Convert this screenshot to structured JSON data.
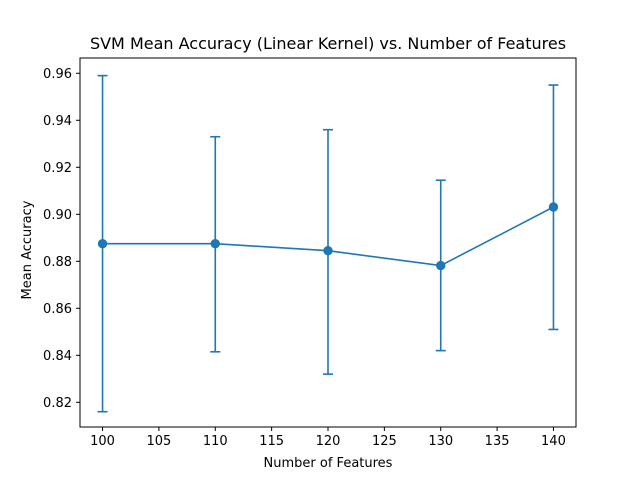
{
  "chart_data": {
    "type": "line",
    "title": "SVM Mean Accuracy (Linear Kernel) vs. Number of Features",
    "xlabel": "Number of Features",
    "ylabel": "Mean Accuracy",
    "xlim": [
      98,
      142
    ],
    "ylim": [
      0.8095,
      0.9665
    ],
    "xticks": [
      100,
      105,
      110,
      115,
      120,
      125,
      130,
      135,
      140
    ],
    "xtick_labels": [
      "100",
      "105",
      "110",
      "115",
      "120",
      "125",
      "130",
      "135",
      "140"
    ],
    "yticks": [
      0.82,
      0.84,
      0.86,
      0.88,
      0.9,
      0.92,
      0.94,
      0.96
    ],
    "ytick_labels": [
      "0.82",
      "0.84",
      "0.86",
      "0.88",
      "0.90",
      "0.92",
      "0.94",
      "0.96"
    ],
    "grid": false,
    "series": [
      {
        "x": [
          100,
          110,
          120,
          130,
          140
        ],
        "y": [
          0.8875,
          0.8875,
          0.8845,
          0.8782,
          0.9031
        ],
        "error_low": [
          0.816,
          0.8415,
          0.832,
          0.842,
          0.851
        ],
        "error_high": [
          0.959,
          0.933,
          0.936,
          0.9145,
          0.955
        ],
        "marker": "circle",
        "color": "#1f77b4"
      }
    ]
  }
}
